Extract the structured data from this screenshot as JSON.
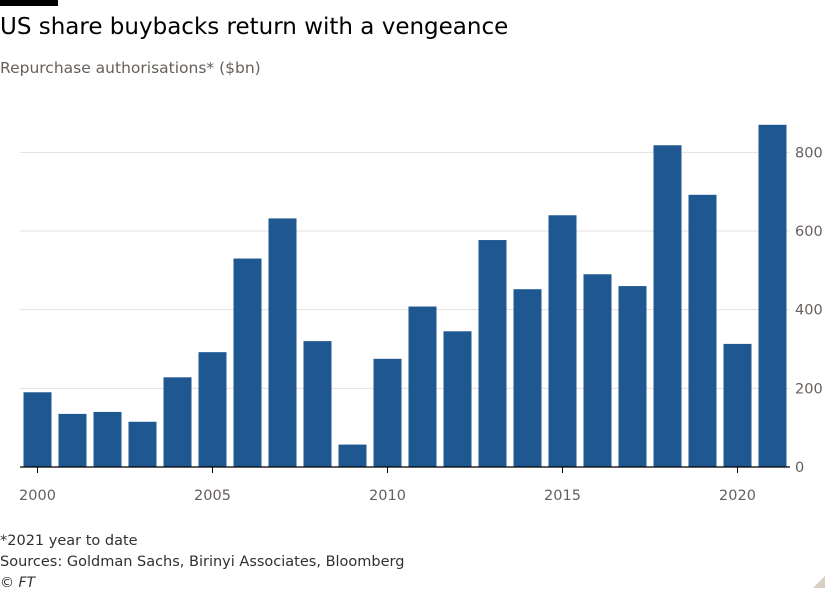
{
  "header": {
    "title": "US share buybacks return with a vengeance",
    "subtitle": "Repurchase authorisations* ($bn)"
  },
  "footer": {
    "footnote": "*2021 year to date",
    "sources": "Sources: Goldman Sachs, Birinyi Associates, Bloomberg",
    "copyright": "© FT"
  },
  "colors": {
    "bar": "#1f5791",
    "grid": "#e6e1dc",
    "axis": "#000000",
    "tick_label": "#66605c"
  },
  "chart_data": {
    "type": "bar",
    "title": "US share buybacks return with a vengeance",
    "subtitle": "Repurchase authorisations* ($bn)",
    "xlabel": "",
    "ylabel": "",
    "categories": [
      2000,
      2001,
      2002,
      2003,
      2004,
      2005,
      2006,
      2007,
      2008,
      2009,
      2010,
      2011,
      2012,
      2013,
      2014,
      2015,
      2016,
      2017,
      2018,
      2019,
      2020,
      2021
    ],
    "values": [
      190,
      135,
      140,
      115,
      228,
      292,
      530,
      632,
      320,
      57,
      275,
      408,
      345,
      577,
      452,
      640,
      490,
      460,
      818,
      692,
      313,
      870
    ],
    "x_tick_labels": [
      "2000",
      "2005",
      "2010",
      "2015",
      "2020"
    ],
    "y_ticks": [
      0,
      200,
      400,
      600,
      800
    ],
    "y_tick_labels": [
      "0",
      "200",
      "400",
      "600",
      "800"
    ],
    "ylim": [
      0,
      900
    ],
    "y_axis_position": "right",
    "grid": true,
    "legend": "none"
  }
}
